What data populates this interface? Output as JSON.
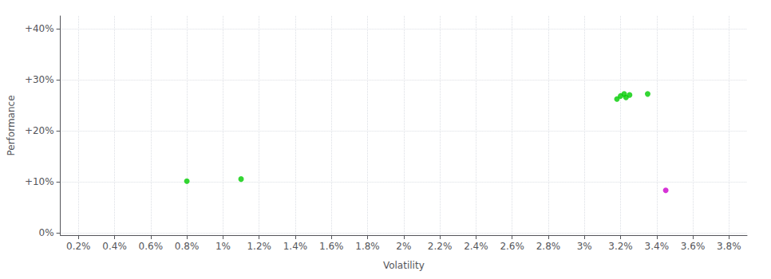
{
  "chart_data": {
    "type": "scatter",
    "xlabel": "Volatility",
    "ylabel": "Performance",
    "xlim": [
      0.001,
      0.039
    ],
    "ylim": [
      -0.005,
      0.425
    ],
    "xticks": [
      {
        "value": 0.002,
        "label": "0.2%"
      },
      {
        "value": 0.004,
        "label": "0.4%"
      },
      {
        "value": 0.006,
        "label": "0.6%"
      },
      {
        "value": 0.008,
        "label": "0.8%"
      },
      {
        "value": 0.01,
        "label": "1%"
      },
      {
        "value": 0.012,
        "label": "1.2%"
      },
      {
        "value": 0.014,
        "label": "1.4%"
      },
      {
        "value": 0.016,
        "label": "1.6%"
      },
      {
        "value": 0.018,
        "label": "1.8%"
      },
      {
        "value": 0.02,
        "label": "2%"
      },
      {
        "value": 0.022,
        "label": "2.2%"
      },
      {
        "value": 0.024,
        "label": "2.4%"
      },
      {
        "value": 0.026,
        "label": "2.6%"
      },
      {
        "value": 0.028,
        "label": "2.8%"
      },
      {
        "value": 0.03,
        "label": "3%"
      },
      {
        "value": 0.032,
        "label": "3.2%"
      },
      {
        "value": 0.034,
        "label": "3.4%"
      },
      {
        "value": 0.036,
        "label": "3.6%"
      },
      {
        "value": 0.038,
        "label": "3.8%"
      }
    ],
    "yticks": [
      {
        "value": 0.0,
        "label": "0%"
      },
      {
        "value": 0.1,
        "label": "+10%"
      },
      {
        "value": 0.2,
        "label": "+20%"
      },
      {
        "value": 0.3,
        "label": "+30%"
      },
      {
        "value": 0.4,
        "label": "+40%"
      }
    ],
    "grid": true,
    "series": [
      {
        "color": "#00cc00",
        "x": [
          0.008,
          0.011,
          0.0318,
          0.032,
          0.0322,
          0.0323,
          0.0325,
          0.0335
        ],
        "values": [
          0.101,
          0.105,
          0.262,
          0.268,
          0.272,
          0.265,
          0.27,
          0.272
        ]
      },
      {
        "color": "#cc00cc",
        "x": [
          0.0345
        ],
        "values": [
          0.083
        ]
      }
    ]
  }
}
